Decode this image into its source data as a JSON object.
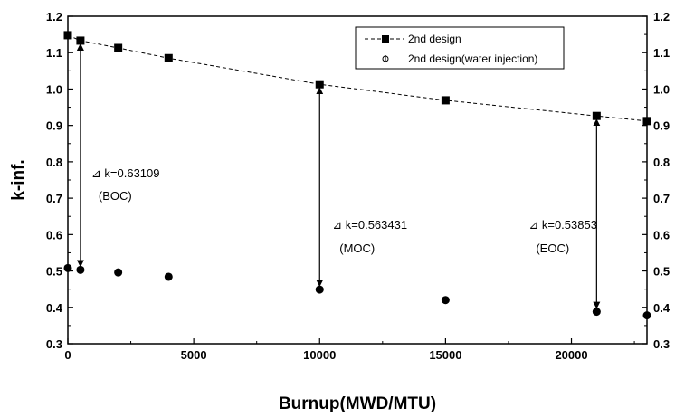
{
  "chart_data": {
    "type": "scatter",
    "xlabel": "Burnup(MWD/MTU)",
    "ylabel": "k-inf.",
    "xlim": [
      0,
      23000
    ],
    "ylim": [
      0.3,
      1.2
    ],
    "x_ticks": [
      0,
      5000,
      10000,
      15000,
      20000
    ],
    "y_ticks": [
      0.3,
      0.4,
      0.5,
      0.6,
      0.7,
      0.8,
      0.9,
      1.0,
      1.1,
      1.2
    ],
    "x_tick_labels": [
      "0",
      "5000",
      "10000",
      "15000",
      "20000"
    ],
    "y_tick_labels": [
      "0.3",
      "0.4",
      "0.5",
      "0.6",
      "0.7",
      "0.8",
      "0.9",
      "1.0",
      "1.1",
      "1.2"
    ],
    "legend_position": "top-right",
    "grid": false,
    "series": [
      {
        "name": "2nd design",
        "marker": "square",
        "line": "dashed",
        "color": "#000000",
        "x": [
          0,
          500,
          2000,
          4000,
          10000,
          15000,
          21000,
          23000
        ],
        "y": [
          1.148,
          1.133,
          1.113,
          1.085,
          1.013,
          0.969,
          0.926,
          0.912
        ]
      },
      {
        "name": "2nd design(water injection)",
        "marker": "circle",
        "line": "none",
        "color": "#000000",
        "x": [
          0,
          500,
          2000,
          4000,
          10000,
          15000,
          21000,
          23000
        ],
        "y": [
          0.508,
          0.503,
          0.496,
          0.484,
          0.449,
          0.42,
          0.388,
          0.378
        ]
      }
    ],
    "annotations": [
      {
        "x": 500,
        "y_top": 1.133,
        "y_bottom": 0.503,
        "label": "⊿ k=0.63109",
        "sublabel": "(BOC)"
      },
      {
        "x": 10000,
        "y_top": 1.013,
        "y_bottom": 0.449,
        "label": "⊿ k=0.563431",
        "sublabel": "(MOC)"
      },
      {
        "x": 21000,
        "y_top": 0.926,
        "y_bottom": 0.388,
        "label": "⊿ k=0.53853",
        "sublabel": "(EOC)"
      }
    ]
  }
}
